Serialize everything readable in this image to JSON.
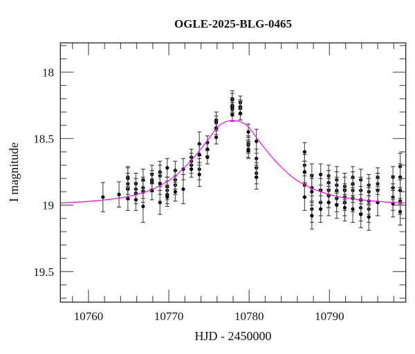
{
  "chart_data": {
    "type": "scatter",
    "title": "OGLE-2025-BLG-0465",
    "xlabel": "HJD - 2450000",
    "ylabel": "I magnitude",
    "xlim": [
      10756.5,
      10799.5
    ],
    "ylim": [
      17.78,
      19.73
    ],
    "y_inverted": true,
    "grid": false,
    "x_ticks": [
      10760,
      10770,
      10780,
      10790
    ],
    "x_tick_labels": [
      "10760",
      "10770",
      "10780",
      "10790"
    ],
    "y_ticks": [
      18,
      18.5,
      19,
      19.5
    ],
    "y_tick_labels": [
      "18",
      "18.5",
      "19",
      "19.5"
    ],
    "colors": {
      "points": "#000000",
      "errorbars": "#555555",
      "model": "#ff00ff"
    },
    "points_format": [
      "HJD-2450000",
      "I mag",
      "error"
    ],
    "points": [
      [
        10761.8,
        18.94,
        0.11
      ],
      [
        10763.8,
        18.92,
        0.095
      ],
      [
        10764.9,
        18.8,
        0.08
      ],
      [
        10764.9,
        18.79,
        0.08
      ],
      [
        10764.9,
        18.84,
        0.08
      ],
      [
        10764.9,
        18.88,
        0.08
      ],
      [
        10764.9,
        18.95,
        0.09
      ],
      [
        10765.9,
        18.84,
        0.08
      ],
      [
        10765.9,
        18.88,
        0.08
      ],
      [
        10765.9,
        18.91,
        0.08
      ],
      [
        10765.9,
        18.96,
        0.08
      ],
      [
        10766.8,
        18.81,
        0.08
      ],
      [
        10766.8,
        18.87,
        0.08
      ],
      [
        10766.8,
        18.9,
        0.08
      ],
      [
        10766.8,
        19.01,
        0.12
      ],
      [
        10767.9,
        18.77,
        0.07
      ],
      [
        10767.9,
        18.81,
        0.07
      ],
      [
        10767.9,
        18.83,
        0.07
      ],
      [
        10767.9,
        18.89,
        0.07
      ],
      [
        10768.9,
        18.75,
        0.08
      ],
      [
        10768.9,
        18.78,
        0.08
      ],
      [
        10768.9,
        18.84,
        0.08
      ],
      [
        10768.9,
        18.98,
        0.09
      ],
      [
        10769.8,
        18.72,
        0.07
      ],
      [
        10769.8,
        18.86,
        0.07
      ],
      [
        10769.8,
        18.89,
        0.07
      ],
      [
        10769.8,
        18.92,
        0.07
      ],
      [
        10769.8,
        18.94,
        0.07
      ],
      [
        10770.8,
        18.74,
        0.07
      ],
      [
        10770.8,
        18.81,
        0.07
      ],
      [
        10770.8,
        18.85,
        0.07
      ],
      [
        10770.8,
        18.9,
        0.07
      ],
      [
        10771.8,
        18.73,
        0.08
      ],
      [
        10771.8,
        18.88,
        0.11
      ],
      [
        10772.8,
        18.64,
        0.06
      ],
      [
        10772.8,
        18.67,
        0.06
      ],
      [
        10772.8,
        18.7,
        0.06
      ],
      [
        10772.8,
        18.73,
        0.06
      ],
      [
        10773.8,
        18.54,
        0.09
      ],
      [
        10773.8,
        18.62,
        0.08
      ],
      [
        10773.8,
        18.73,
        0.08
      ],
      [
        10773.8,
        18.77,
        0.09
      ],
      [
        10774.8,
        18.53,
        0.05
      ],
      [
        10774.8,
        18.58,
        0.05
      ],
      [
        10774.8,
        18.64,
        0.05
      ],
      [
        10775.9,
        18.36,
        0.06
      ],
      [
        10775.9,
        18.38,
        0.05
      ],
      [
        10775.9,
        18.42,
        0.05
      ],
      [
        10775.9,
        18.49,
        0.05
      ],
      [
        10777.9,
        18.2,
        0.06
      ],
      [
        10777.9,
        18.21,
        0.05
      ],
      [
        10777.9,
        18.25,
        0.05
      ],
      [
        10777.9,
        18.26,
        0.05
      ],
      [
        10777.9,
        18.28,
        0.05
      ],
      [
        10777.9,
        18.32,
        0.05
      ],
      [
        10778.9,
        18.23,
        0.05
      ],
      [
        10778.9,
        18.26,
        0.05
      ],
      [
        10778.9,
        18.27,
        0.05
      ],
      [
        10778.9,
        18.31,
        0.05
      ],
      [
        10778.9,
        18.31,
        0.05
      ],
      [
        10779.9,
        18.45,
        0.06
      ],
      [
        10779.9,
        18.54,
        0.06
      ],
      [
        10779.9,
        18.55,
        0.06
      ],
      [
        10779.9,
        18.58,
        0.06
      ],
      [
        10779.9,
        18.59,
        0.06
      ],
      [
        10780.9,
        18.52,
        0.09
      ],
      [
        10780.9,
        18.65,
        0.07
      ],
      [
        10780.9,
        18.72,
        0.07
      ],
      [
        10780.9,
        18.76,
        0.08
      ],
      [
        10780.9,
        18.79,
        0.09
      ],
      [
        10786.9,
        18.6,
        0.07
      ],
      [
        10786.9,
        18.7,
        0.08
      ],
      [
        10786.9,
        18.75,
        0.08
      ],
      [
        10786.9,
        18.85,
        0.09
      ],
      [
        10786.9,
        18.94,
        0.1
      ],
      [
        10787.8,
        18.78,
        0.09
      ],
      [
        10787.8,
        18.87,
        0.1
      ],
      [
        10787.8,
        18.9,
        0.1
      ],
      [
        10787.8,
        19.03,
        0.1
      ],
      [
        10787.8,
        19.08,
        0.1
      ],
      [
        10788.9,
        18.77,
        0.08
      ],
      [
        10788.9,
        18.89,
        0.09
      ],
      [
        10788.9,
        18.98,
        0.1
      ],
      [
        10788.9,
        19.03,
        0.1
      ],
      [
        10789.9,
        18.78,
        0.08
      ],
      [
        10789.9,
        18.83,
        0.09
      ],
      [
        10789.9,
        18.89,
        0.09
      ],
      [
        10789.9,
        18.93,
        0.09
      ],
      [
        10789.9,
        18.98,
        0.1
      ],
      [
        10790.9,
        18.81,
        0.1
      ],
      [
        10790.9,
        18.85,
        0.1
      ],
      [
        10790.9,
        18.89,
        0.1
      ],
      [
        10790.9,
        18.95,
        0.1
      ],
      [
        10790.9,
        19.0,
        0.1
      ],
      [
        10791.9,
        18.86,
        0.1
      ],
      [
        10791.9,
        18.89,
        0.1
      ],
      [
        10791.9,
        18.94,
        0.1
      ],
      [
        10791.9,
        18.98,
        0.1
      ],
      [
        10791.9,
        19.02,
        0.1
      ],
      [
        10792.9,
        18.79,
        0.08
      ],
      [
        10792.9,
        18.84,
        0.09
      ],
      [
        10792.9,
        18.89,
        0.09
      ],
      [
        10792.9,
        18.95,
        0.1
      ],
      [
        10792.9,
        19.03,
        0.1
      ],
      [
        10793.9,
        18.81,
        0.08
      ],
      [
        10793.9,
        18.89,
        0.1
      ],
      [
        10793.9,
        18.96,
        0.1
      ],
      [
        10793.9,
        19.02,
        0.1
      ],
      [
        10793.9,
        19.07,
        0.1
      ],
      [
        10794.9,
        18.85,
        0.08
      ],
      [
        10794.9,
        18.9,
        0.1
      ],
      [
        10794.9,
        18.97,
        0.1
      ],
      [
        10794.9,
        19.03,
        0.1
      ],
      [
        10794.9,
        19.09,
        0.1
      ],
      [
        10796.0,
        18.79,
        0.07
      ],
      [
        10796.0,
        18.84,
        0.08
      ],
      [
        10796.0,
        18.89,
        0.09
      ],
      [
        10796.0,
        18.98,
        0.1
      ],
      [
        10797.9,
        18.79,
        0.08
      ],
      [
        10797.9,
        18.87,
        0.09
      ],
      [
        10797.9,
        18.94,
        0.1
      ],
      [
        10797.9,
        18.99,
        0.1
      ],
      [
        10798.8,
        18.71,
        0.1
      ],
      [
        10798.8,
        18.79,
        0.1
      ],
      [
        10798.8,
        18.89,
        0.1
      ],
      [
        10798.8,
        18.97,
        0.1
      ],
      [
        10798.8,
        19.05,
        0.1
      ]
    ],
    "model": {
      "x": [
        10756,
        10760,
        10764,
        10766,
        10768,
        10770,
        10771,
        10772,
        10773,
        10774,
        10775,
        10776,
        10777,
        10778,
        10779,
        10780,
        10781,
        10782,
        10783,
        10784,
        10785,
        10786,
        10787,
        10788,
        10790,
        10792,
        10796,
        10800
      ],
      "y": [
        18.986,
        18.972,
        18.946,
        18.92,
        18.88,
        18.816,
        18.77,
        18.714,
        18.65,
        18.577,
        18.5,
        18.417,
        18.375,
        18.365,
        18.375,
        18.417,
        18.5,
        18.577,
        18.65,
        18.714,
        18.77,
        18.816,
        18.85,
        18.88,
        18.92,
        18.946,
        18.972,
        18.986
      ]
    }
  }
}
